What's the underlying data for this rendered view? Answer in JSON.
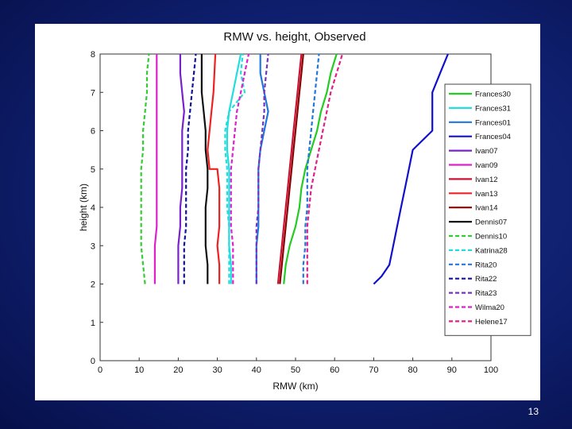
{
  "slide": {
    "page_number": "13"
  },
  "chart_data": {
    "type": "line",
    "title": "RMW vs. height, Observed",
    "xlabel": "RMW (km)",
    "ylabel": "height (km)",
    "xlim": [
      0,
      100
    ],
    "ylim": [
      0,
      8
    ],
    "xticks": [
      0,
      10,
      20,
      30,
      40,
      50,
      60,
      70,
      80,
      90,
      100
    ],
    "yticks": [
      0,
      1,
      2,
      3,
      4,
      5,
      6,
      7,
      8
    ],
    "legend_position": "right",
    "series": [
      {
        "name": "Frances30",
        "color": "#22cc22",
        "dash": "solid",
        "x": [
          47,
          47.5,
          48.5,
          50,
          51,
          51.5,
          52.5,
          54,
          55.5,
          56.5,
          58,
          59,
          60.5
        ],
        "y": [
          2,
          2.5,
          3,
          3.5,
          4,
          4.5,
          5,
          5.5,
          6,
          6.5,
          7,
          7.5,
          8
        ]
      },
      {
        "name": "Frances31",
        "color": "#22dddd",
        "dash": "solid",
        "x": [
          33.5,
          33.5,
          33,
          33,
          33,
          33,
          33,
          32.5,
          32.5,
          33,
          34,
          35,
          36
        ],
        "y": [
          2,
          2.5,
          3,
          3.5,
          4,
          4.5,
          5,
          5.5,
          6,
          6.5,
          7,
          7.5,
          8
        ]
      },
      {
        "name": "Frances01",
        "color": "#2277dd",
        "dash": "solid",
        "x": [
          40,
          40,
          40,
          40.5,
          40.5,
          40.5,
          40.5,
          41,
          42,
          43,
          42,
          41,
          41
        ],
        "y": [
          2,
          2.5,
          3,
          3.5,
          4,
          4.5,
          5,
          5.5,
          6,
          6.5,
          7,
          7.5,
          8
        ]
      },
      {
        "name": "Frances04",
        "color": "#1010cc",
        "dash": "solid",
        "x": [
          70,
          72,
          74,
          75,
          76,
          77,
          78,
          79,
          80,
          85,
          85,
          87,
          89
        ],
        "y": [
          2,
          2.2,
          2.5,
          3,
          3.5,
          4,
          4.5,
          5,
          5.5,
          6,
          7,
          7.5,
          8
        ]
      },
      {
        "name": "Ivan07",
        "color": "#7722cc",
        "dash": "solid",
        "x": [
          20,
          20,
          20,
          20.5,
          20.5,
          21,
          21,
          21,
          21,
          21.5,
          21,
          20.5,
          20.5
        ],
        "y": [
          2,
          2.5,
          3,
          3.5,
          4,
          4.5,
          5,
          5.5,
          6,
          6.5,
          7,
          7.5,
          8
        ]
      },
      {
        "name": "Ivan09",
        "color": "#dd22cc",
        "dash": "solid",
        "x": [
          14,
          14,
          14,
          14.5,
          14.5,
          14.5,
          14.5,
          14.5,
          14.5,
          14.5,
          14.5,
          14.5,
          14.5
        ],
        "y": [
          2,
          2.5,
          3,
          3.5,
          4,
          4.5,
          5,
          5.5,
          6,
          6.5,
          7,
          7.5,
          8
        ]
      },
      {
        "name": "Ivan12",
        "color": "#cc1133",
        "dash": "solid",
        "x": [
          45.5,
          46,
          46.5,
          47,
          47.5,
          48,
          48.5,
          49,
          49.5,
          50,
          50.5,
          51,
          51.5
        ],
        "y": [
          2,
          2.5,
          3,
          3.5,
          4,
          4.5,
          5,
          5.5,
          6,
          6.5,
          7,
          7.5,
          8
        ]
      },
      {
        "name": "Ivan13",
        "color": "#ee2222",
        "dash": "solid",
        "x": [
          30.5,
          30.5,
          30,
          30.5,
          30.5,
          30.5,
          30,
          28,
          27.5,
          28,
          28.5,
          29,
          29.5
        ],
        "y": [
          2,
          2.5,
          3,
          3.5,
          4,
          4.5,
          5,
          5,
          5.5,
          6,
          6.5,
          7,
          8
        ]
      },
      {
        "name": "Ivan14",
        "color": "#880000",
        "dash": "solid",
        "x": [
          46,
          46.5,
          47,
          47.5,
          48,
          48.5,
          49,
          49.5,
          50,
          50.5,
          51,
          51.5,
          52
        ],
        "y": [
          2,
          2.5,
          3,
          3.5,
          4,
          4.5,
          5,
          5.5,
          6,
          6.5,
          7,
          7.5,
          8
        ]
      },
      {
        "name": "Dennis07",
        "color": "#111111",
        "dash": "solid",
        "x": [
          27.5,
          27.5,
          27,
          27,
          27,
          27.5,
          27.5,
          27,
          27,
          26.5,
          26,
          26,
          26
        ],
        "y": [
          2,
          2.5,
          3,
          3.5,
          4,
          4.5,
          5,
          5.5,
          6,
          6.5,
          7,
          7.5,
          8
        ]
      },
      {
        "name": "Dennis10",
        "color": "#33cc33",
        "dash": "dashed",
        "x": [
          11.5,
          11,
          10.5,
          10.5,
          10.5,
          10.5,
          10.5,
          11,
          11,
          11.5,
          12,
          12,
          12.5
        ],
        "y": [
          2,
          2.5,
          3,
          3.5,
          4,
          4.5,
          5,
          5.5,
          6,
          6.5,
          7,
          7.5,
          8
        ]
      },
      {
        "name": "Katrina28",
        "color": "#22dddd",
        "dash": "dashed",
        "x": [
          33,
          33,
          33,
          33,
          32.5,
          32.5,
          32.5,
          32,
          32,
          33,
          37,
          36,
          36.5
        ],
        "y": [
          2,
          2.5,
          3,
          3.5,
          4,
          4.5,
          5,
          5.5,
          6,
          6.5,
          7,
          7.5,
          8
        ]
      },
      {
        "name": "Rita20",
        "color": "#2277dd",
        "dash": "dashed",
        "x": [
          52,
          52,
          52.5,
          52.5,
          53,
          53,
          53,
          53.5,
          54,
          54.5,
          55,
          55.5,
          56
        ],
        "y": [
          2,
          2.5,
          3,
          3.5,
          4,
          4.5,
          5,
          5.5,
          6,
          6.5,
          7,
          7.5,
          8
        ]
      },
      {
        "name": "Rita22",
        "color": "#111199",
        "dash": "dashed",
        "x": [
          21.5,
          21.5,
          21.5,
          22,
          22,
          22,
          22,
          22.5,
          22.5,
          23,
          23.5,
          24,
          24.5
        ],
        "y": [
          2,
          2.5,
          3,
          3.5,
          4,
          4.5,
          5,
          5.5,
          6,
          6.5,
          7,
          7.5,
          8
        ]
      },
      {
        "name": "Rita23",
        "color": "#7733bb",
        "dash": "dashed",
        "x": [
          40,
          40,
          40,
          40,
          40.5,
          40.5,
          40.5,
          41,
          41.5,
          42,
          42,
          42.5,
          43
        ],
        "y": [
          2,
          2.5,
          3,
          3.5,
          4,
          4.5,
          5,
          5.5,
          6,
          6.5,
          7,
          7.5,
          8
        ]
      },
      {
        "name": "Wilma20",
        "color": "#dd22cc",
        "dash": "dashed",
        "x": [
          34,
          34,
          34,
          33.5,
          33.5,
          33.5,
          33.5,
          34,
          34.5,
          35,
          36,
          37,
          38
        ],
        "y": [
          2,
          2.5,
          3,
          3.5,
          4,
          4.5,
          5,
          5.5,
          6,
          6.5,
          7,
          7.5,
          8
        ]
      },
      {
        "name": "Helene17",
        "color": "#dd2288",
        "dash": "dashed",
        "x": [
          53,
          53,
          53,
          53,
          53.5,
          54,
          55,
          56,
          57,
          58,
          59,
          60.5,
          62
        ],
        "y": [
          2,
          2.5,
          3,
          3.5,
          4,
          4.5,
          5,
          5.5,
          6,
          6.5,
          7,
          7.5,
          8
        ]
      }
    ]
  }
}
